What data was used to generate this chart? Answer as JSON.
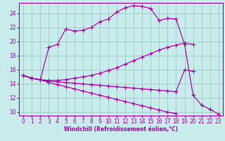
{
  "xlabel": "Windchill (Refroidissement éolien,°C)",
  "bg_color": "#c8ecec",
  "grid_color": "#a0cece",
  "line_color": "#aa00aa",
  "xlim": [
    -0.5,
    23.5
  ],
  "ylim": [
    9.5,
    25.5
  ],
  "xticks": [
    0,
    1,
    2,
    3,
    4,
    5,
    6,
    7,
    8,
    9,
    10,
    11,
    12,
    13,
    14,
    15,
    16,
    17,
    18,
    19,
    20,
    21,
    22,
    23
  ],
  "yticks": [
    10,
    12,
    14,
    16,
    18,
    20,
    22,
    24
  ],
  "curve1_x": [
    0,
    1,
    2,
    3,
    4,
    5,
    6,
    7,
    8,
    9,
    10,
    11,
    12,
    13,
    14,
    15,
    16,
    17,
    18,
    19,
    20,
    21,
    22,
    23
  ],
  "curve1_y": [
    15.2,
    14.8,
    14.6,
    19.2,
    19.6,
    21.8,
    21.5,
    21.6,
    22.0,
    22.8,
    23.2,
    24.2,
    24.8,
    25.1,
    25.0,
    24.7,
    23.0,
    23.3,
    23.2,
    19.6,
    12.4,
    11.0,
    10.4,
    9.7
  ],
  "curve2_x": [
    0,
    1,
    2,
    3,
    4,
    5,
    6,
    7,
    8,
    9,
    10,
    11,
    12,
    13,
    14,
    15,
    16,
    17,
    18,
    19,
    20
  ],
  "curve2_y": [
    15.2,
    14.8,
    14.6,
    14.5,
    14.5,
    14.6,
    14.8,
    15.0,
    15.2,
    15.5,
    15.9,
    16.3,
    16.8,
    17.3,
    17.8,
    18.3,
    18.8,
    19.2,
    19.5,
    19.8,
    19.6
  ],
  "curve3_x": [
    0,
    1,
    2,
    3,
    4,
    5,
    6,
    7,
    8,
    9,
    10,
    11,
    12,
    13,
    14,
    15,
    16,
    17,
    18,
    19,
    20
  ],
  "curve3_y": [
    15.2,
    14.8,
    14.6,
    14.4,
    14.3,
    14.2,
    14.1,
    14.0,
    13.9,
    13.8,
    13.7,
    13.6,
    13.5,
    13.4,
    13.3,
    13.2,
    13.1,
    13.0,
    12.9,
    16.0,
    15.8
  ],
  "curve4_x": [
    0,
    1,
    2,
    3,
    4,
    5,
    6,
    7,
    8,
    9,
    10,
    11,
    12,
    13,
    14,
    15,
    16,
    17,
    18,
    19,
    20,
    21,
    22,
    23
  ],
  "curve4_y": [
    15.2,
    14.8,
    14.6,
    14.2,
    13.9,
    13.6,
    13.3,
    13.0,
    12.7,
    12.4,
    12.1,
    11.8,
    11.5,
    11.2,
    10.9,
    10.6,
    10.3,
    10.0,
    9.8,
    null,
    null,
    null,
    null,
    null
  ],
  "markersize": 2.5,
  "tick_fontsize": 5.5,
  "xlabel_fontsize": 5.5
}
